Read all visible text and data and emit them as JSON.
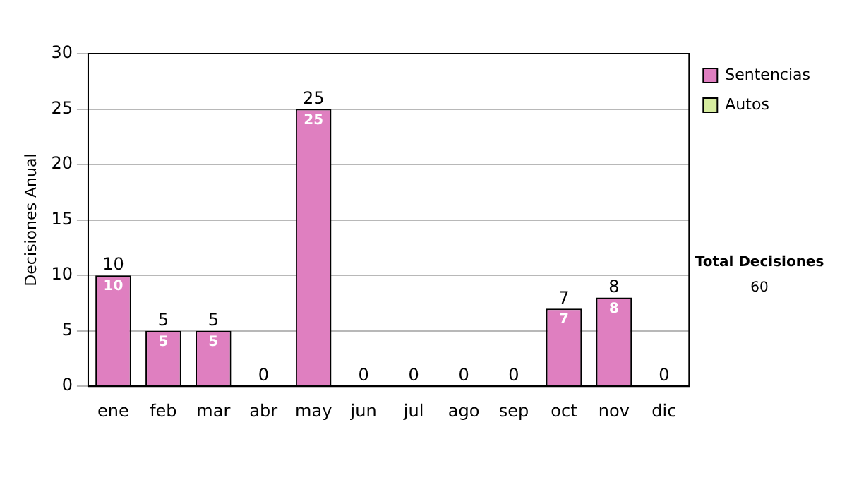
{
  "chart_data": {
    "type": "bar",
    "stacked": true,
    "ylabel": "Decisiones Anual",
    "categories": [
      "ene",
      "feb",
      "mar",
      "abr",
      "may",
      "jun",
      "jul",
      "ago",
      "sep",
      "oct",
      "nov",
      "dic"
    ],
    "series": [
      {
        "name": "Sentencias",
        "color": "#df7fc0",
        "values": [
          10,
          5,
          5,
          0,
          25,
          0,
          0,
          0,
          0,
          7,
          8,
          0
        ],
        "value_labels": [
          "10",
          "5",
          "5",
          null,
          "25",
          null,
          null,
          null,
          null,
          "7",
          "8",
          null
        ]
      },
      {
        "name": "Autos",
        "color": "#d6eca0",
        "values": [
          0,
          0,
          0,
          0,
          0,
          0,
          0,
          0,
          0,
          0,
          0,
          0
        ]
      }
    ],
    "totals": [
      "10",
      "5",
      "5",
      "0",
      "25",
      "0",
      "0",
      "0",
      "0",
      "7",
      "8",
      "0"
    ],
    "ylim": [
      0,
      30
    ],
    "yticks": [
      0,
      5,
      10,
      15,
      20,
      25,
      30
    ],
    "grid": "y",
    "legend": "right",
    "annotations": [
      "Total Decisiones",
      "60"
    ]
  }
}
